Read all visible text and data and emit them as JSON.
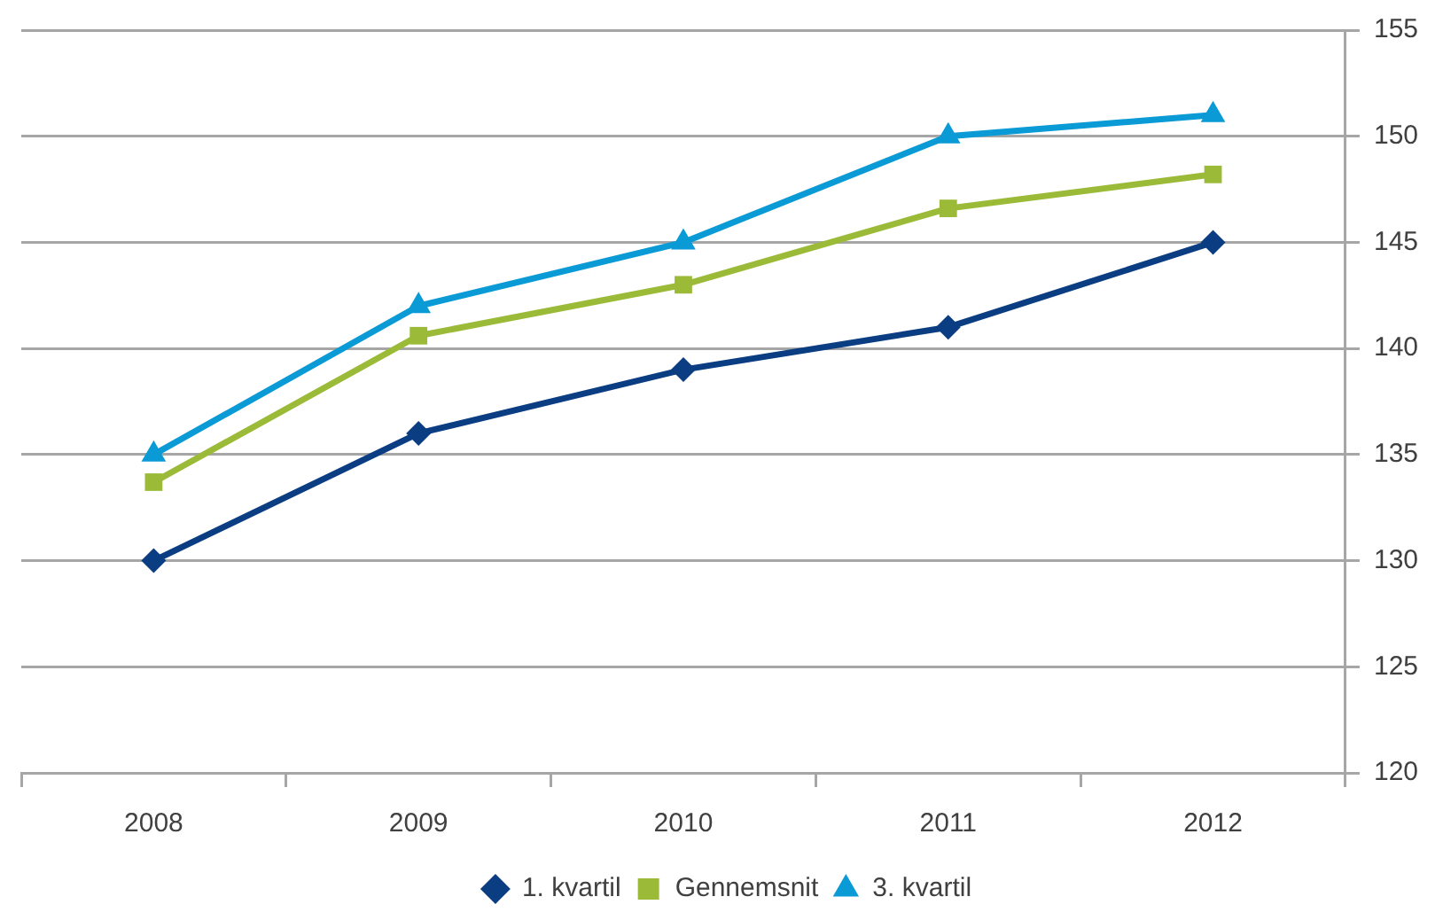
{
  "chart_data": {
    "type": "line",
    "categories": [
      "2008",
      "2009",
      "2010",
      "2011",
      "2012"
    ],
    "series": [
      {
        "name": "1. kvartil",
        "color": "#0b3d82",
        "marker": "diamond",
        "values": [
          130,
          136,
          139,
          141,
          145
        ]
      },
      {
        "name": "Gennemsnit",
        "color": "#9bbb38",
        "marker": "square",
        "values": [
          133.7,
          140.6,
          143,
          146.6,
          148.2
        ]
      },
      {
        "name": "3. kvartil",
        "color": "#0a9ad5",
        "marker": "triangle",
        "values": [
          135,
          142,
          145,
          150,
          151
        ]
      }
    ],
    "ylim": [
      120,
      155
    ],
    "yticks": [
      120,
      125,
      130,
      135,
      140,
      145,
      150,
      155
    ],
    "grid": "y",
    "legend": "bottom",
    "line_style": "solid"
  }
}
